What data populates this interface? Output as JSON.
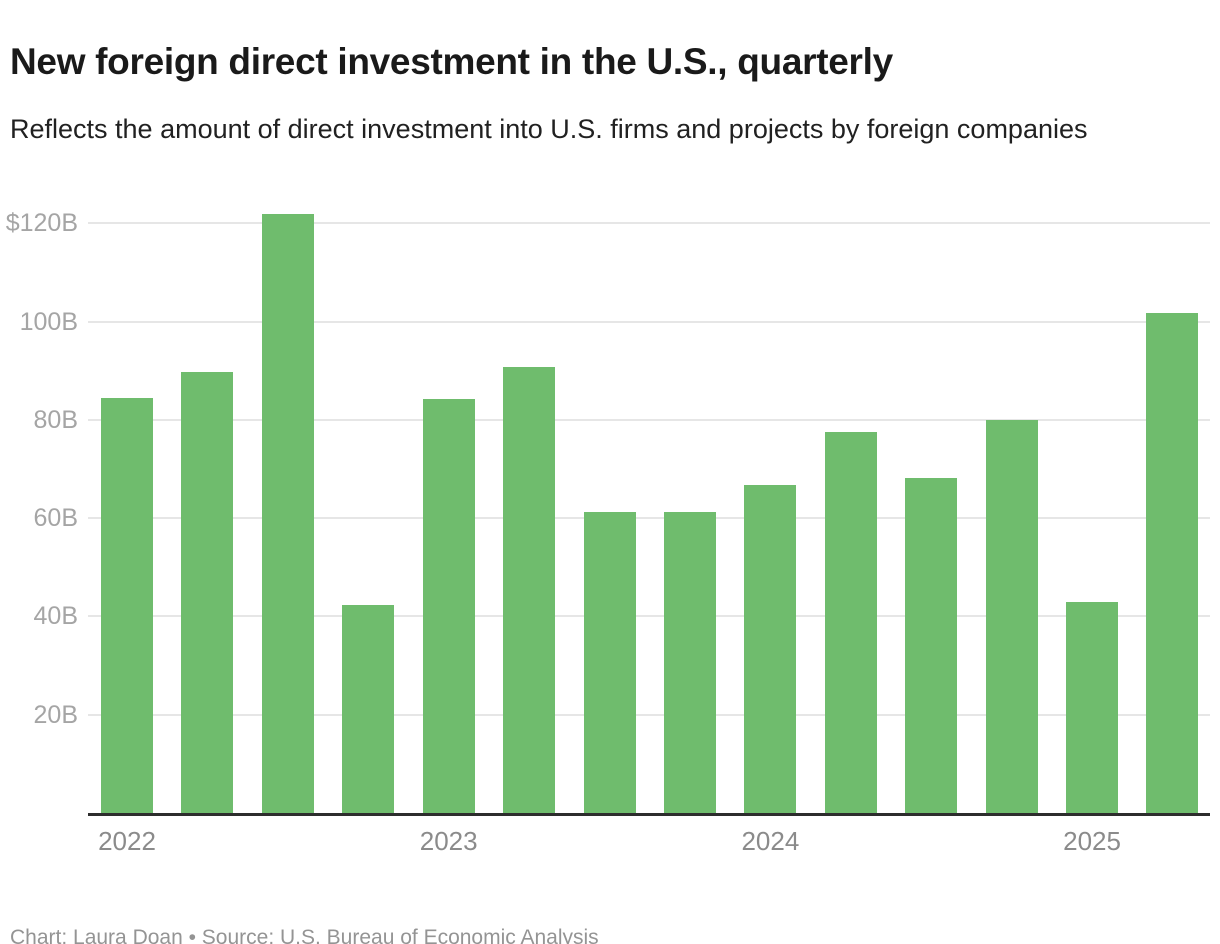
{
  "header": {
    "title": "New foreign direct investment in the U.S., quarterly",
    "subtitle": "Reflects the amount of direct investment into U.S. firms and projects by foreign companies"
  },
  "footer": {
    "credit": "Chart: Laura Doan • Source: U.S. Bureau of Economic Analysis"
  },
  "colors": {
    "bar": "#6fbc6d",
    "gridline": "#e6e6e6",
    "axis_line": "#2d2d2d",
    "y_label": "#a5a5a5",
    "x_label": "#8b8b8b",
    "title": "#1a1a1a",
    "footer": "#949494"
  },
  "chart_data": {
    "type": "bar",
    "title": "New foreign direct investment in the U.S., quarterly",
    "subtitle": "Reflects the amount of direct investment into U.S. firms and projects by foreign companies",
    "unit": "billions of U.S. dollars",
    "categories": [
      "2022 Q1",
      "2022 Q2",
      "2022 Q3",
      "2022 Q4",
      "2023 Q1",
      "2023 Q2",
      "2023 Q3",
      "2023 Q4",
      "2024 Q1",
      "2024 Q2",
      "2024 Q3",
      "2024 Q4",
      "2025 Q1",
      "2025 Q2"
    ],
    "values": [
      84.4,
      89.8,
      121.8,
      42.3,
      84.3,
      90.7,
      61.2,
      61.3,
      66.7,
      77.5,
      68.2,
      80.0,
      42.9,
      101.8
    ],
    "xlabel": "",
    "ylabel": "",
    "ylim": [
      0,
      130
    ],
    "grid": "horizontal",
    "legend": "none",
    "bar_color": "#6fbc6d",
    "y_ticks": [
      {
        "value": 20,
        "label": "20B"
      },
      {
        "value": 40,
        "label": "40B"
      },
      {
        "value": 60,
        "label": "60B"
      },
      {
        "value": 80,
        "label": "80B"
      },
      {
        "value": 100,
        "label": "100B"
      },
      {
        "value": 120,
        "label": "$120B"
      }
    ],
    "x_tick_labels": [
      {
        "label": "2022",
        "bar_index": 0
      },
      {
        "label": "2023",
        "bar_index": 4
      },
      {
        "label": "2024",
        "bar_index": 8
      },
      {
        "label": "2025",
        "bar_index": 12
      }
    ]
  }
}
